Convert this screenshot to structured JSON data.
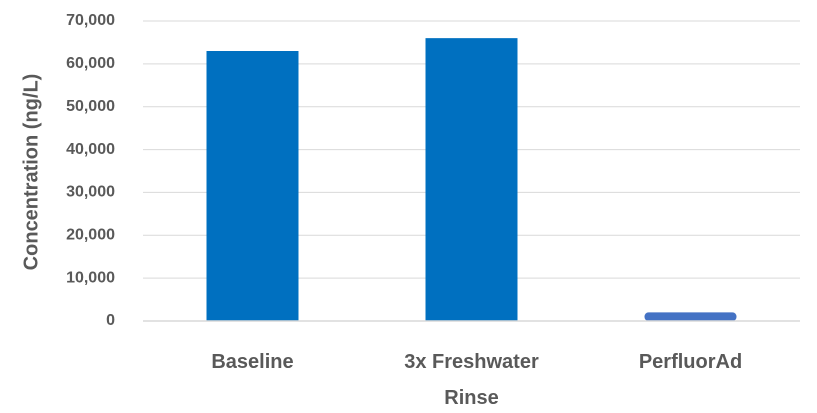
{
  "chart_data": {
    "type": "bar",
    "ylabel": "Concentration (ng/L)",
    "xlabel": "",
    "ylim": [
      0,
      70000
    ],
    "yticks": [
      0,
      10000,
      20000,
      30000,
      40000,
      50000,
      60000,
      70000
    ],
    "ytick_labels": [
      "0",
      "10,000",
      "20,000",
      "30,000",
      "40,000",
      "50,000",
      "60,000",
      "70,000"
    ],
    "categories": [
      {
        "lines": [
          "Baseline"
        ]
      },
      {
        "lines": [
          "3x Freshwater",
          "Rinse"
        ]
      },
      {
        "lines": [
          "PerfluorAd"
        ]
      }
    ],
    "values": [
      63000,
      66000,
      2000
    ],
    "colors": [
      "#0070c0",
      "#0070c0",
      "#4472c4"
    ],
    "grid": true
  }
}
